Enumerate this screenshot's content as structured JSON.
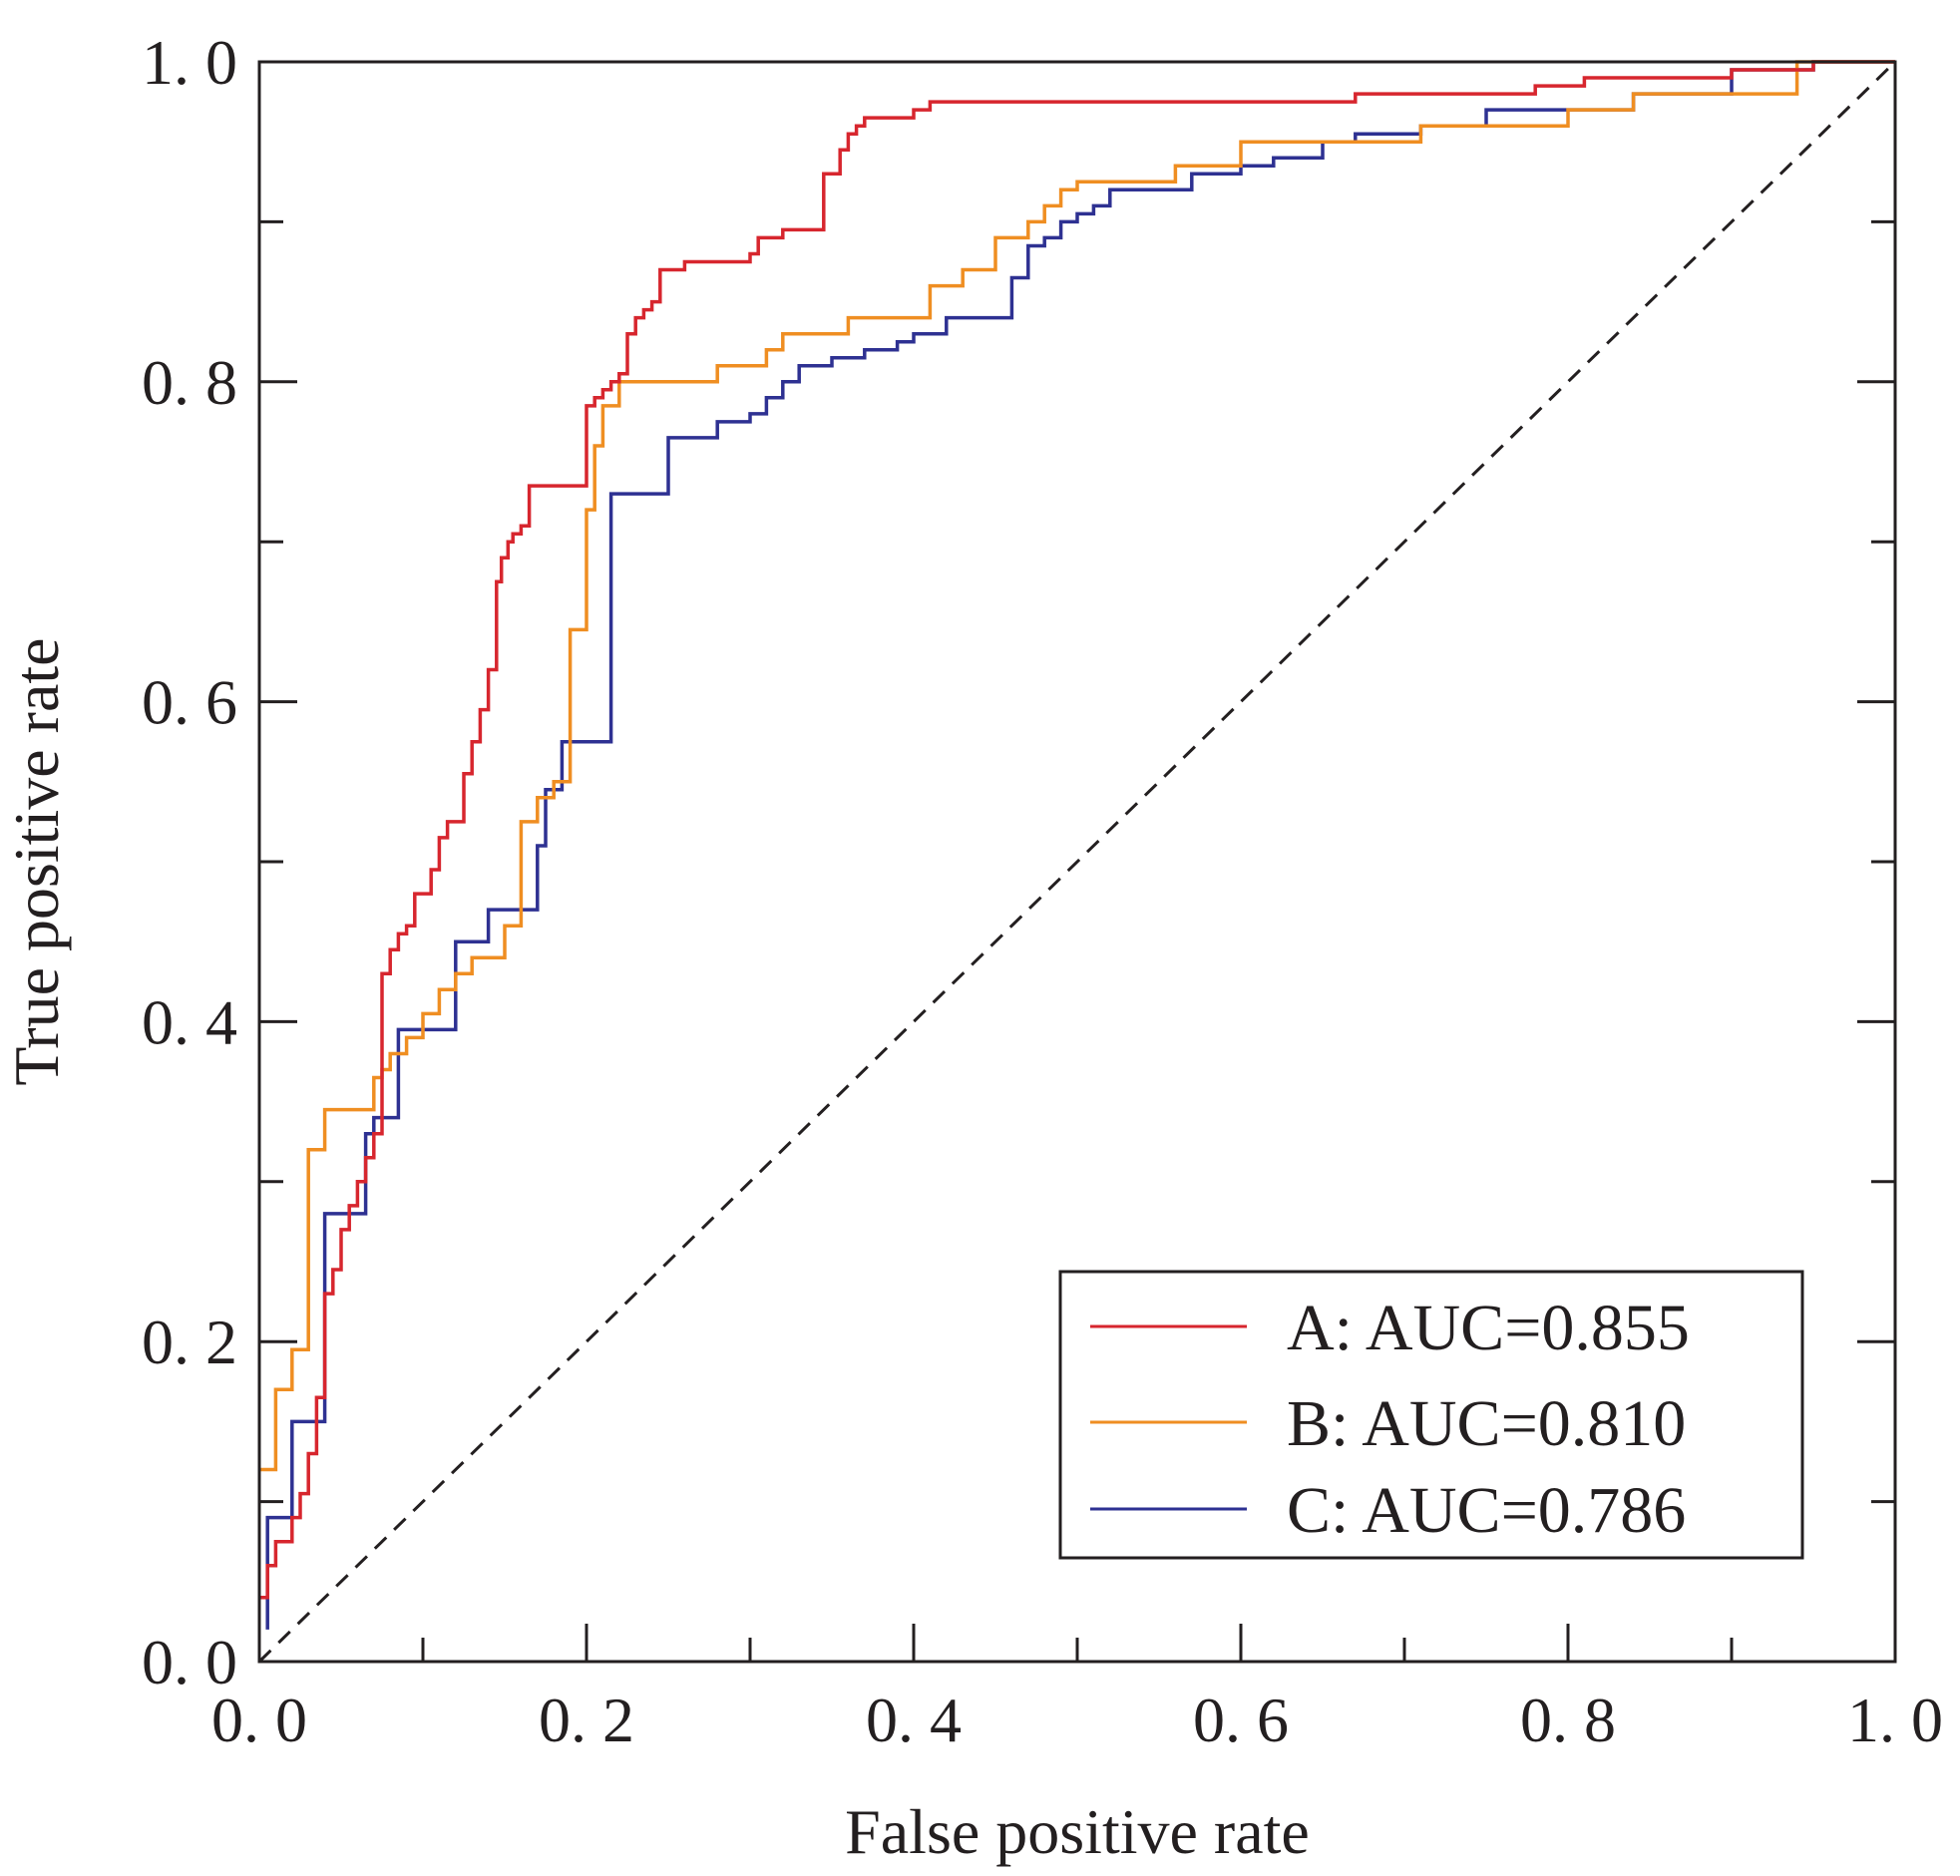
{
  "chart_data": {
    "type": "line",
    "title": "",
    "xlabel": "False positive rate",
    "ylabel": "True positive rate",
    "xlim": [
      0,
      1
    ],
    "ylim": [
      0,
      1
    ],
    "x_major_ticks": [
      0.0,
      0.2,
      0.4,
      0.6,
      0.8,
      1.0
    ],
    "y_major_ticks": [
      0.0,
      0.2,
      0.4,
      0.6,
      0.8,
      1.0
    ],
    "x_tick_labels": [
      "0. 0",
      "0. 2",
      "0. 4",
      "0. 6",
      "0. 8",
      "1. 0"
    ],
    "y_tick_labels": [
      "0. 0",
      "0. 2",
      "0. 4",
      "0. 6",
      "0. 8",
      "1. 0"
    ],
    "minor_tick_step": 0.1,
    "grid": false,
    "legend_position": "bottom-right",
    "reference_line": {
      "name": "chance",
      "x": [
        0,
        1
      ],
      "y": [
        0,
        1
      ],
      "style": "dashed",
      "color": "#231f20"
    },
    "series": [
      {
        "name": "A: AUC=0.855",
        "label_text": "A: AUC=0.855",
        "auc": 0.855,
        "color": "#d7262e",
        "x": [
          0.0,
          0.005,
          0.005,
          0.01,
          0.01,
          0.02,
          0.02,
          0.025,
          0.025,
          0.03,
          0.03,
          0.035,
          0.035,
          0.04,
          0.04,
          0.045,
          0.045,
          0.05,
          0.05,
          0.055,
          0.055,
          0.06,
          0.06,
          0.065,
          0.065,
          0.07,
          0.07,
          0.075,
          0.075,
          0.08,
          0.08,
          0.085,
          0.085,
          0.09,
          0.09,
          0.095,
          0.095,
          0.105,
          0.105,
          0.11,
          0.11,
          0.115,
          0.115,
          0.125,
          0.125,
          0.13,
          0.13,
          0.135,
          0.135,
          0.14,
          0.14,
          0.145,
          0.145,
          0.148,
          0.148,
          0.152,
          0.152,
          0.155,
          0.155,
          0.16,
          0.16,
          0.165,
          0.165,
          0.17,
          0.17,
          0.2,
          0.2,
          0.205,
          0.205,
          0.21,
          0.21,
          0.215,
          0.215,
          0.22,
          0.22,
          0.225,
          0.225,
          0.23,
          0.23,
          0.235,
          0.235,
          0.24,
          0.24,
          0.245,
          0.245,
          0.25,
          0.25,
          0.26,
          0.26,
          0.3,
          0.3,
          0.305,
          0.305,
          0.31,
          0.31,
          0.32,
          0.32,
          0.345,
          0.345,
          0.355,
          0.355,
          0.36,
          0.36,
          0.365,
          0.365,
          0.37,
          0.37,
          0.375,
          0.375,
          0.4,
          0.4,
          0.41,
          0.41,
          0.42,
          0.42,
          0.67,
          0.67,
          0.78,
          0.78,
          0.81,
          0.81,
          0.9,
          0.9,
          0.95,
          0.95,
          1.0
        ],
        "y": [
          0.04,
          0.04,
          0.06,
          0.06,
          0.075,
          0.075,
          0.09,
          0.09,
          0.105,
          0.105,
          0.13,
          0.13,
          0.165,
          0.165,
          0.23,
          0.23,
          0.245,
          0.245,
          0.27,
          0.27,
          0.285,
          0.285,
          0.3,
          0.3,
          0.315,
          0.315,
          0.33,
          0.33,
          0.43,
          0.43,
          0.445,
          0.445,
          0.455,
          0.455,
          0.46,
          0.46,
          0.48,
          0.48,
          0.495,
          0.495,
          0.515,
          0.515,
          0.525,
          0.525,
          0.555,
          0.555,
          0.575,
          0.575,
          0.595,
          0.595,
          0.62,
          0.62,
          0.675,
          0.675,
          0.69,
          0.69,
          0.7,
          0.7,
          0.705,
          0.705,
          0.71,
          0.71,
          0.735,
          0.735,
          0.735,
          0.735,
          0.785,
          0.785,
          0.79,
          0.79,
          0.795,
          0.795,
          0.8,
          0.8,
          0.805,
          0.805,
          0.83,
          0.83,
          0.84,
          0.84,
          0.845,
          0.845,
          0.85,
          0.85,
          0.87,
          0.87,
          0.87,
          0.87,
          0.875,
          0.875,
          0.88,
          0.88,
          0.89,
          0.89,
          0.89,
          0.89,
          0.895,
          0.895,
          0.93,
          0.93,
          0.945,
          0.945,
          0.955,
          0.955,
          0.96,
          0.96,
          0.965,
          0.965,
          0.965,
          0.965,
          0.97,
          0.97,
          0.975,
          0.975,
          0.975,
          0.975,
          0.98,
          0.98,
          0.985,
          0.985,
          0.99,
          0.99,
          0.995,
          0.995,
          1.0,
          1.0
        ]
      },
      {
        "name": "B: AUC=0.810",
        "label_text": "B: AUC=0.810",
        "auc": 0.81,
        "color": "#ef8e22",
        "x": [
          0.0,
          0.01,
          0.01,
          0.02,
          0.02,
          0.03,
          0.03,
          0.04,
          0.04,
          0.05,
          0.05,
          0.07,
          0.07,
          0.075,
          0.075,
          0.08,
          0.08,
          0.09,
          0.09,
          0.1,
          0.1,
          0.11,
          0.11,
          0.12,
          0.12,
          0.13,
          0.13,
          0.15,
          0.15,
          0.16,
          0.16,
          0.17,
          0.17,
          0.18,
          0.18,
          0.19,
          0.19,
          0.2,
          0.2,
          0.205,
          0.205,
          0.21,
          0.21,
          0.22,
          0.22,
          0.28,
          0.28,
          0.31,
          0.31,
          0.32,
          0.32,
          0.36,
          0.36,
          0.41,
          0.41,
          0.43,
          0.43,
          0.45,
          0.45,
          0.47,
          0.47,
          0.48,
          0.48,
          0.49,
          0.49,
          0.5,
          0.5,
          0.56,
          0.56,
          0.6,
          0.6,
          0.71,
          0.71,
          0.8,
          0.8,
          0.84,
          0.84,
          0.94,
          0.94,
          1.0
        ],
        "y": [
          0.12,
          0.12,
          0.17,
          0.17,
          0.195,
          0.195,
          0.32,
          0.32,
          0.345,
          0.345,
          0.345,
          0.345,
          0.365,
          0.365,
          0.37,
          0.37,
          0.38,
          0.38,
          0.39,
          0.39,
          0.405,
          0.405,
          0.42,
          0.42,
          0.43,
          0.43,
          0.44,
          0.44,
          0.46,
          0.46,
          0.525,
          0.525,
          0.54,
          0.54,
          0.55,
          0.55,
          0.645,
          0.645,
          0.72,
          0.72,
          0.76,
          0.76,
          0.785,
          0.785,
          0.8,
          0.8,
          0.81,
          0.81,
          0.82,
          0.82,
          0.83,
          0.83,
          0.84,
          0.84,
          0.86,
          0.86,
          0.87,
          0.87,
          0.89,
          0.89,
          0.9,
          0.9,
          0.91,
          0.91,
          0.92,
          0.92,
          0.925,
          0.925,
          0.935,
          0.935,
          0.95,
          0.95,
          0.96,
          0.96,
          0.97,
          0.97,
          0.98,
          0.98,
          1.0,
          1.0
        ]
      },
      {
        "name": "C: AUC=0.786",
        "label_text": "C: AUC=0.786",
        "auc": 0.786,
        "color": "#2e3192",
        "x": [
          0.005,
          0.005,
          0.01,
          0.01,
          0.02,
          0.02,
          0.025,
          0.025,
          0.04,
          0.04,
          0.045,
          0.045,
          0.065,
          0.065,
          0.07,
          0.07,
          0.085,
          0.085,
          0.09,
          0.09,
          0.12,
          0.12,
          0.14,
          0.14,
          0.16,
          0.16,
          0.17,
          0.17,
          0.175,
          0.175,
          0.185,
          0.185,
          0.215,
          0.215,
          0.25,
          0.25,
          0.28,
          0.28,
          0.3,
          0.3,
          0.31,
          0.31,
          0.32,
          0.32,
          0.33,
          0.33,
          0.35,
          0.35,
          0.36,
          0.36,
          0.37,
          0.37,
          0.39,
          0.39,
          0.4,
          0.4,
          0.42,
          0.42,
          0.43,
          0.43,
          0.46,
          0.46,
          0.47,
          0.47,
          0.48,
          0.48,
          0.49,
          0.49,
          0.5,
          0.5,
          0.51,
          0.51,
          0.52,
          0.52,
          0.55,
          0.55,
          0.57,
          0.57,
          0.6,
          0.6,
          0.62,
          0.62,
          0.65,
          0.65,
          0.67,
          0.67,
          0.71,
          0.71,
          0.75,
          0.75,
          0.8,
          0.8,
          0.84,
          0.84,
          0.9,
          0.9,
          0.95,
          0.95,
          1.0
        ],
        "y": [
          0.02,
          0.09,
          0.09,
          0.09,
          0.09,
          0.15,
          0.15,
          0.15,
          0.15,
          0.28,
          0.28,
          0.28,
          0.28,
          0.33,
          0.33,
          0.34,
          0.34,
          0.395,
          0.395,
          0.395,
          0.395,
          0.45,
          0.45,
          0.47,
          0.47,
          0.47,
          0.47,
          0.51,
          0.51,
          0.545,
          0.545,
          0.575,
          0.575,
          0.73,
          0.73,
          0.765,
          0.765,
          0.775,
          0.775,
          0.78,
          0.78,
          0.79,
          0.79,
          0.8,
          0.8,
          0.81,
          0.81,
          0.815,
          0.815,
          0.815,
          0.815,
          0.82,
          0.82,
          0.825,
          0.825,
          0.83,
          0.83,
          0.84,
          0.84,
          0.84,
          0.84,
          0.865,
          0.865,
          0.885,
          0.885,
          0.89,
          0.89,
          0.9,
          0.9,
          0.905,
          0.905,
          0.91,
          0.91,
          0.92,
          0.92,
          0.92,
          0.92,
          0.93,
          0.93,
          0.935,
          0.935,
          0.94,
          0.94,
          0.95,
          0.95,
          0.955,
          0.955,
          0.96,
          0.96,
          0.97,
          0.97,
          0.97,
          0.97,
          0.98,
          0.98,
          0.995,
          0.995,
          1.0,
          1.0
        ]
      }
    ]
  },
  "colors": {
    "axis": "#231f20",
    "background": "#ffffff"
  }
}
